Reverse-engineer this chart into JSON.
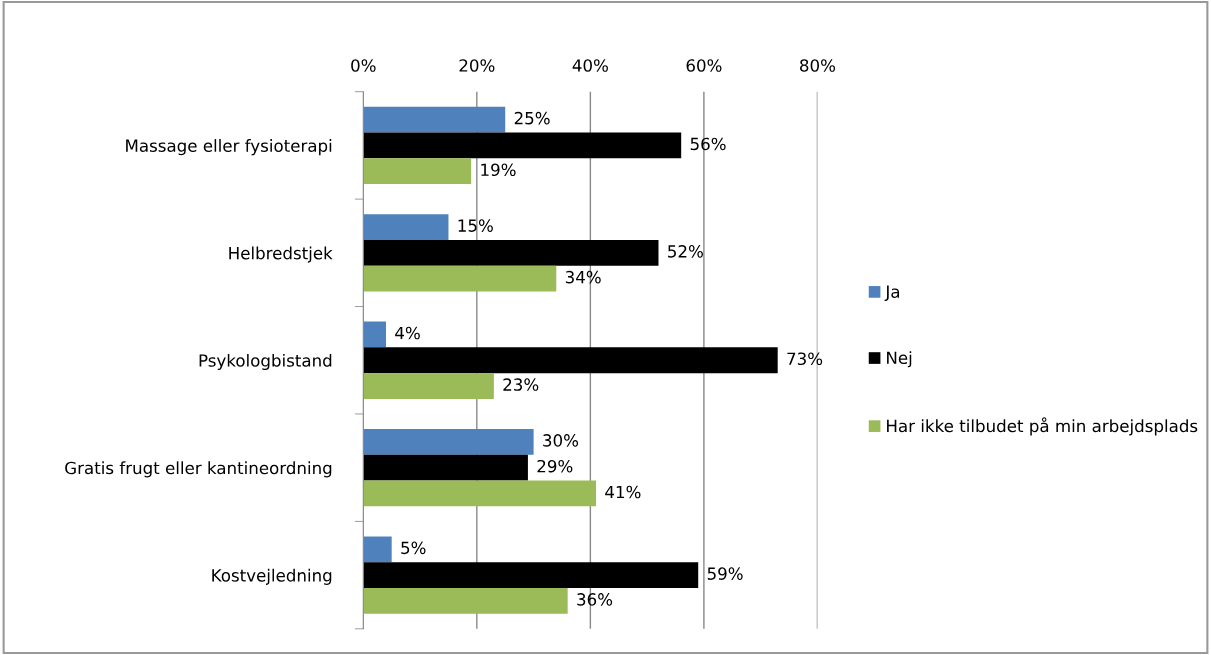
{
  "chart_data": {
    "type": "bar",
    "orientation": "horizontal",
    "categories": [
      "Massage eller fysioterapi",
      "Helbredstjek",
      "Psykologbistand",
      "Gratis frugt eller kantineordning",
      "Kostvejledning"
    ],
    "series": [
      {
        "name": "Ja",
        "color": "#4f81bd",
        "values": [
          25,
          15,
          4,
          30,
          5
        ],
        "value_labels": [
          "25%",
          "15%",
          "4%",
          "30%",
          "5%"
        ]
      },
      {
        "name": "Nej",
        "color": "#000000",
        "values": [
          56,
          52,
          73,
          29,
          59
        ],
        "value_labels": [
          "56%",
          "52%",
          "73%",
          "29%",
          "59%"
        ]
      },
      {
        "name": "Har ikke tilbudet på min arbejdsplads",
        "color": "#9bbb59",
        "values": [
          19,
          34,
          23,
          41,
          36
        ],
        "value_labels": [
          "19%",
          "34%",
          "23%",
          "41%",
          "36%"
        ]
      }
    ],
    "xlim": [
      0,
      80
    ],
    "xticks": [
      {
        "value": 0,
        "label": "0%"
      },
      {
        "value": 20,
        "label": "20%"
      },
      {
        "value": 40,
        "label": "40%"
      },
      {
        "value": 60,
        "label": "60%"
      },
      {
        "value": 80,
        "label": "80%"
      }
    ],
    "grid": "x",
    "legend": "right"
  }
}
